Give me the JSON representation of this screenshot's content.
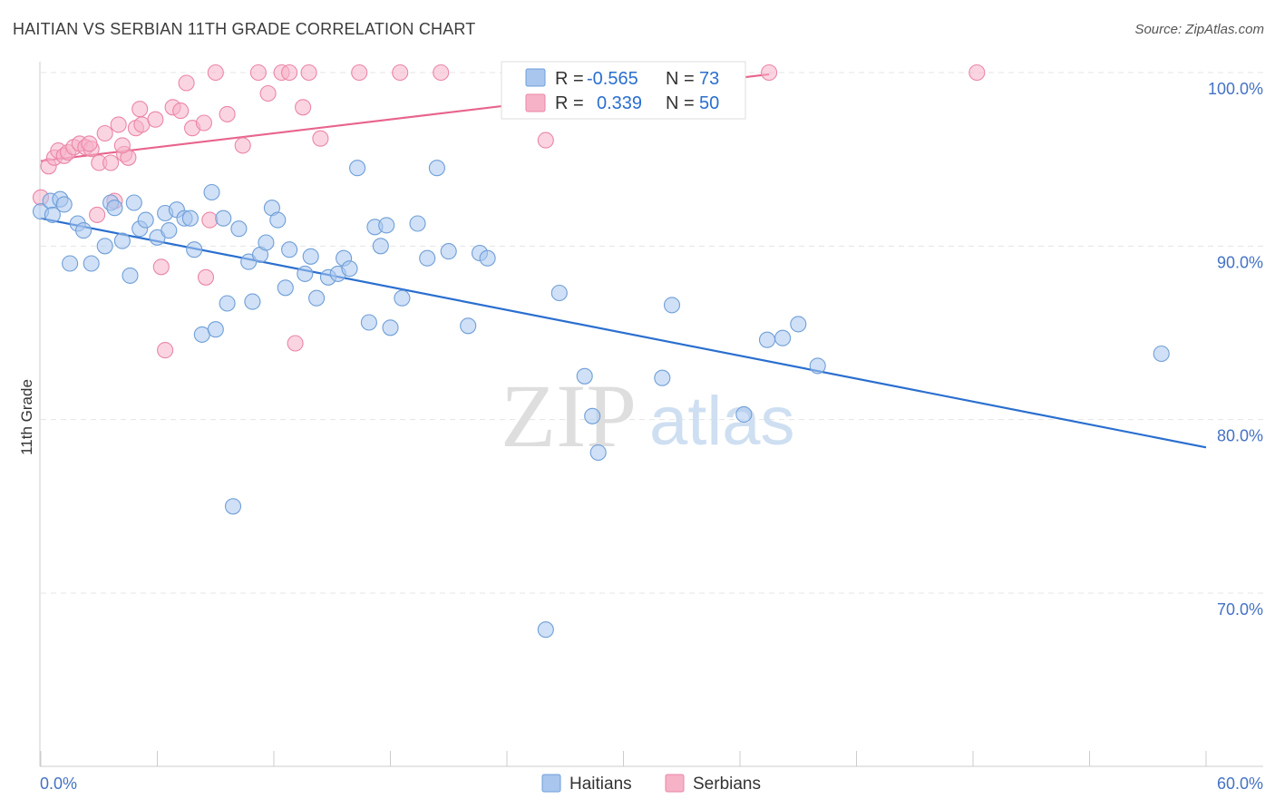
{
  "header": {
    "title": "HAITIAN VS SERBIAN 11TH GRADE CORRELATION CHART",
    "source": "Source: ZipAtlas.com"
  },
  "watermark": {
    "zip": "ZIP",
    "atlas": "atlas"
  },
  "colors": {
    "haitians": "#a9c6ee",
    "haitians_stroke": "#6f9fd8",
    "haitians_line": "#2a6fcf",
    "serbians": "#f6b3c8",
    "serbians_stroke": "#eb86a6",
    "serbians_line": "#e8648c",
    "tick_text": "#4472c4"
  },
  "legend": {
    "rows": [
      {
        "r_label": "R =",
        "r_value": "-0.565",
        "n_label": "N =",
        "n_value": "73"
      },
      {
        "r_label": "R =",
        "r_value": "0.339",
        "n_label": "N =",
        "n_value": "50"
      }
    ]
  },
  "bottom_legend": {
    "haitians": "Haitians",
    "serbians": "Serbians"
  },
  "chart_data": {
    "type": "scatter",
    "title": "HAITIAN VS SERBIAN 11TH GRADE CORRELATION CHART",
    "xlabel": "",
    "ylabel": "11th Grade",
    "xlim": [
      0,
      60
    ],
    "ylim": [
      60,
      100
    ],
    "x_tick_labels": [
      "0.0%",
      "60.0%"
    ],
    "y_ticks": [
      100,
      90,
      80,
      70
    ],
    "y_tick_labels": [
      "100.0%",
      "90.0%",
      "80.0%",
      "70.0%"
    ],
    "grid": true,
    "series": [
      {
        "name": "Haitians",
        "R": -0.565,
        "N": 73,
        "trend": {
          "x": [
            0,
            60
          ],
          "y": [
            91.6,
            78.4
          ]
        },
        "points": [
          [
            0.0,
            92.0
          ],
          [
            0.5,
            92.6
          ],
          [
            1.0,
            92.7
          ],
          [
            1.2,
            92.4
          ],
          [
            1.5,
            89.0
          ],
          [
            1.9,
            91.3
          ],
          [
            2.2,
            90.9
          ],
          [
            2.6,
            89.0
          ],
          [
            3.3,
            90.0
          ],
          [
            3.6,
            92.5
          ],
          [
            3.8,
            92.2
          ],
          [
            4.2,
            90.3
          ],
          [
            4.6,
            88.3
          ],
          [
            4.8,
            92.5
          ],
          [
            5.1,
            91.0
          ],
          [
            5.4,
            91.5
          ],
          [
            6.0,
            90.5
          ],
          [
            6.4,
            91.9
          ],
          [
            6.6,
            90.9
          ],
          [
            7.0,
            92.1
          ],
          [
            7.4,
            91.6
          ],
          [
            7.7,
            91.6
          ],
          [
            7.9,
            89.8
          ],
          [
            8.3,
            84.9
          ],
          [
            8.8,
            93.1
          ],
          [
            9.0,
            85.2
          ],
          [
            9.4,
            91.6
          ],
          [
            9.6,
            86.7
          ],
          [
            9.9,
            75.0
          ],
          [
            10.2,
            91.0
          ],
          [
            10.7,
            89.1
          ],
          [
            10.9,
            86.8
          ],
          [
            11.3,
            89.5
          ],
          [
            11.6,
            90.2
          ],
          [
            11.9,
            92.2
          ],
          [
            12.2,
            91.5
          ],
          [
            12.6,
            87.6
          ],
          [
            12.8,
            89.8
          ],
          [
            13.6,
            88.4
          ],
          [
            13.9,
            89.4
          ],
          [
            14.2,
            87.0
          ],
          [
            14.8,
            88.2
          ],
          [
            15.3,
            88.4
          ],
          [
            15.6,
            89.3
          ],
          [
            15.9,
            88.7
          ],
          [
            16.3,
            94.5
          ],
          [
            16.9,
            85.6
          ],
          [
            17.2,
            91.1
          ],
          [
            17.5,
            90.0
          ],
          [
            17.8,
            91.2
          ],
          [
            18.0,
            85.3
          ],
          [
            18.6,
            87.0
          ],
          [
            19.4,
            91.3
          ],
          [
            19.9,
            89.3
          ],
          [
            20.4,
            94.5
          ],
          [
            21.0,
            89.7
          ],
          [
            22.0,
            85.4
          ],
          [
            22.6,
            89.6
          ],
          [
            23.0,
            89.3
          ],
          [
            26.0,
            67.9
          ],
          [
            26.7,
            87.3
          ],
          [
            28.0,
            82.5
          ],
          [
            28.4,
            80.2
          ],
          [
            28.7,
            78.1
          ],
          [
            32.0,
            82.4
          ],
          [
            32.5,
            86.6
          ],
          [
            36.2,
            80.3
          ],
          [
            37.4,
            84.6
          ],
          [
            38.2,
            84.7
          ],
          [
            39.0,
            85.5
          ],
          [
            40.0,
            83.1
          ],
          [
            57.7,
            83.8
          ],
          [
            0.6,
            91.8
          ]
        ]
      },
      {
        "name": "Serbians",
        "R": 0.339,
        "N": 50,
        "trend": {
          "x": [
            0,
            37.5
          ],
          "y": [
            94.9,
            99.9
          ]
        },
        "points": [
          [
            0.0,
            92.8
          ],
          [
            0.4,
            94.6
          ],
          [
            0.7,
            95.1
          ],
          [
            0.9,
            95.5
          ],
          [
            1.2,
            95.2
          ],
          [
            1.4,
            95.4
          ],
          [
            1.7,
            95.7
          ],
          [
            2.0,
            95.9
          ],
          [
            2.3,
            95.7
          ],
          [
            2.6,
            95.6
          ],
          [
            2.9,
            91.8
          ],
          [
            3.0,
            94.8
          ],
          [
            3.3,
            96.5
          ],
          [
            3.6,
            94.8
          ],
          [
            3.8,
            92.6
          ],
          [
            4.0,
            97.0
          ],
          [
            4.3,
            95.3
          ],
          [
            4.5,
            95.1
          ],
          [
            4.9,
            96.8
          ],
          [
            5.2,
            97.0
          ],
          [
            5.1,
            97.9
          ],
          [
            5.9,
            97.3
          ],
          [
            6.2,
            88.8
          ],
          [
            6.4,
            84.0
          ],
          [
            6.8,
            98.0
          ],
          [
            7.2,
            97.8
          ],
          [
            7.5,
            99.4
          ],
          [
            7.8,
            96.8
          ],
          [
            8.4,
            97.1
          ],
          [
            8.5,
            88.2
          ],
          [
            8.7,
            91.5
          ],
          [
            9.0,
            100.0
          ],
          [
            9.6,
            97.6
          ],
          [
            10.4,
            95.8
          ],
          [
            11.2,
            100.0
          ],
          [
            11.7,
            98.8
          ],
          [
            12.4,
            100.0
          ],
          [
            12.8,
            100.0
          ],
          [
            13.1,
            84.4
          ],
          [
            13.5,
            98.0
          ],
          [
            13.8,
            100.0
          ],
          [
            14.4,
            96.2
          ],
          [
            16.4,
            100.0
          ],
          [
            18.5,
            100.0
          ],
          [
            20.6,
            100.0
          ],
          [
            26.0,
            96.1
          ],
          [
            37.5,
            100.0
          ],
          [
            48.2,
            100.0
          ],
          [
            2.5,
            95.9
          ],
          [
            4.2,
            95.8
          ]
        ]
      }
    ]
  }
}
